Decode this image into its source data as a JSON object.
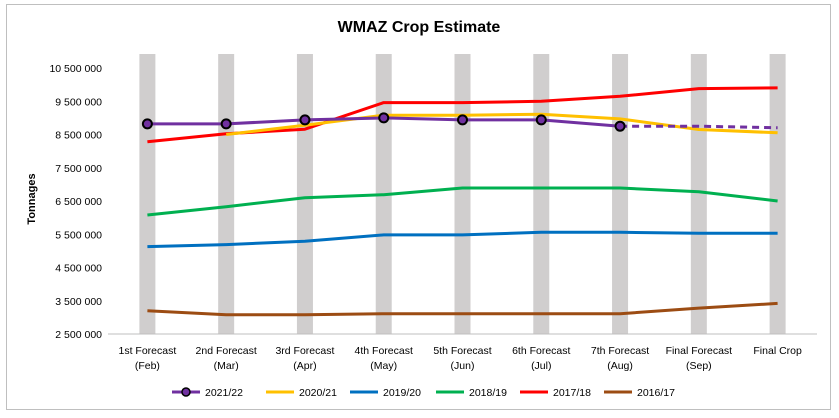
{
  "chart_data": {
    "type": "line",
    "title": "WMAZ Crop Estimate",
    "xlabel": "",
    "ylabel": "Tonnages",
    "ylim": [
      2500000,
      10500000
    ],
    "yticks": [
      2500000,
      3500000,
      4500000,
      5500000,
      6500000,
      7500000,
      8500000,
      9500000,
      10500000
    ],
    "ytick_labels": [
      "2 500 000",
      "3 500 000",
      "4 500 000",
      "5 500 000",
      "6 500 000",
      "7 500 000",
      "8 500 000",
      "9 500 000",
      "10 500 000"
    ],
    "categories": [
      [
        "1st Forecast",
        "(Feb)"
      ],
      [
        "2nd Forecast",
        "(Mar)"
      ],
      [
        "3rd Forecast",
        "(Apr)"
      ],
      [
        "4th Forecast",
        "(May)"
      ],
      [
        "5th Forecast",
        "(Jun)"
      ],
      [
        "6th Forecast",
        "(Jul)"
      ],
      [
        "7th Forecast",
        "(Aug)"
      ],
      [
        "Final Forecast",
        "(Sep)"
      ],
      [
        "Final Crop",
        ""
      ]
    ],
    "grid": false,
    "category_bands": true,
    "legend_position": "bottom",
    "series": [
      {
        "name": "2021/22",
        "color": "#7030a0",
        "marker": "circle",
        "values": [
          8820000,
          8820000,
          8940000,
          9000000,
          8940000,
          8940000,
          8750000,
          null,
          null
        ],
        "projection": [
          null,
          null,
          null,
          null,
          null,
          null,
          8750000,
          8750000,
          8700000
        ]
      },
      {
        "name": "2020/21",
        "color": "#ffc000",
        "values": [
          null,
          8500000,
          8780000,
          9080000,
          9080000,
          9110000,
          8970000,
          8650000,
          8550000
        ]
      },
      {
        "name": "2019/20",
        "color": "#0070c0",
        "values": [
          5130000,
          5190000,
          5290000,
          5480000,
          5480000,
          5560000,
          5560000,
          5530000,
          5530000
        ]
      },
      {
        "name": "2018/19",
        "color": "#00b050",
        "values": [
          6080000,
          6330000,
          6600000,
          6690000,
          6890000,
          6890000,
          6890000,
          6780000,
          6500000
        ]
      },
      {
        "name": "2017/18",
        "color": "#ff0000",
        "values": [
          8280000,
          8520000,
          8660000,
          9460000,
          9460000,
          9500000,
          9650000,
          9880000,
          9900000
        ]
      },
      {
        "name": "2016/17",
        "color": "#9c4c13",
        "values": [
          3200000,
          3080000,
          3080000,
          3110000,
          3110000,
          3110000,
          3110000,
          3280000,
          3420000
        ]
      }
    ]
  }
}
